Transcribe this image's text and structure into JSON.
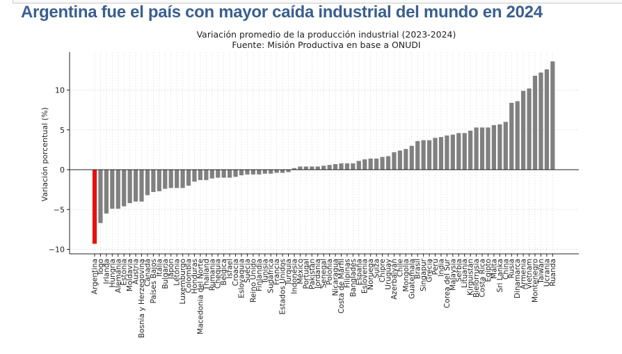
{
  "page": {
    "headline": "Argentina fue el país con mayor caída industrial del mundo en 2024"
  },
  "chart_data": {
    "type": "bar",
    "title": "Variación promedio de la producción industrial (2023-2024)",
    "subtitle": "Fuente: Misión Productiva en base a ONUDI",
    "xlabel": "",
    "ylabel": "Variación porcentual (%)",
    "ylim": [
      -10.5,
      14.8
    ],
    "yticks": [
      -10,
      -5,
      0,
      5,
      10
    ],
    "ytick_labels": [
      "−10",
      "−5",
      "0",
      "5",
      "10"
    ],
    "grid": true,
    "highlight": {
      "category": "Argentina",
      "color": "#e8100f"
    },
    "bar_color": "#808080",
    "categories": [
      "Argentina",
      "Togo",
      "Irlanda",
      "Hungría",
      "Alemania",
      "Estonia",
      "Moldavia",
      "Austria",
      "Bosnia y Herzegovina",
      "Canadá",
      "Países Bajos",
      "Italia",
      "Bulgaria",
      "Japón",
      "Letonia",
      "Luxemburgo",
      "Colombia",
      "Honduras",
      "Macedonia del Norte",
      "Thailand",
      "Rumania",
      "Chequia",
      "Bélgica",
      "Israel",
      "Croacia",
      "Eslovaquia",
      "Suecia",
      "Reino Unido",
      "Finlandia",
      "Tunisia",
      "Sudáfrica",
      "Francia",
      "Estados Unidos",
      "Turquía",
      "Indonesia",
      "México",
      "Portugal",
      "Pakistán",
      "Jordania",
      "Senegal",
      "Polonia",
      "Nicaragua",
      "Costa de Marfil",
      "Filipinas",
      "Bangladés",
      "España",
      "Eslovenia",
      "Noruega",
      "Suiza",
      "Chipre",
      "Uruguay",
      "Azerbaiyán",
      "Chile",
      "Mongolia",
      "Guatemala",
      "Brasil",
      "Singapur",
      "Grecia",
      "Perú",
      "India",
      "Corea del Sur",
      "Malaysia",
      "Serbia",
      "Lituania",
      "Kirguistán",
      "Bielorrusia",
      "Costa Rica",
      "Egipto",
      "Malta",
      "Sri Lanka",
      "China",
      "Rusia",
      "Dinamarca",
      "Armenia",
      "Vietnam",
      "Montenegro",
      "Taiwán",
      "Ucrania",
      "Ruanda"
    ],
    "values": [
      -9.3,
      -6.7,
      -5.5,
      -4.9,
      -4.9,
      -4.6,
      -4.2,
      -4.0,
      -4.0,
      -3.2,
      -2.8,
      -2.7,
      -2.4,
      -2.3,
      -2.3,
      -2.3,
      -2.0,
      -1.5,
      -1.3,
      -1.3,
      -1.1,
      -1.0,
      -1.0,
      -1.0,
      -0.9,
      -0.7,
      -0.6,
      -0.6,
      -0.6,
      -0.5,
      -0.5,
      -0.4,
      -0.4,
      -0.3,
      0.2,
      0.4,
      0.4,
      0.4,
      0.4,
      0.5,
      0.6,
      0.7,
      0.8,
      0.8,
      0.8,
      1.1,
      1.3,
      1.4,
      1.4,
      1.6,
      1.7,
      2.2,
      2.4,
      2.6,
      3.0,
      3.6,
      3.7,
      3.7,
      4.0,
      4.1,
      4.3,
      4.4,
      4.6,
      4.6,
      4.9,
      5.3,
      5.3,
      5.3,
      5.6,
      5.7,
      6.0,
      8.4,
      8.6,
      9.9,
      10.2,
      11.8,
      12.2,
      12.6,
      13.6
    ]
  }
}
